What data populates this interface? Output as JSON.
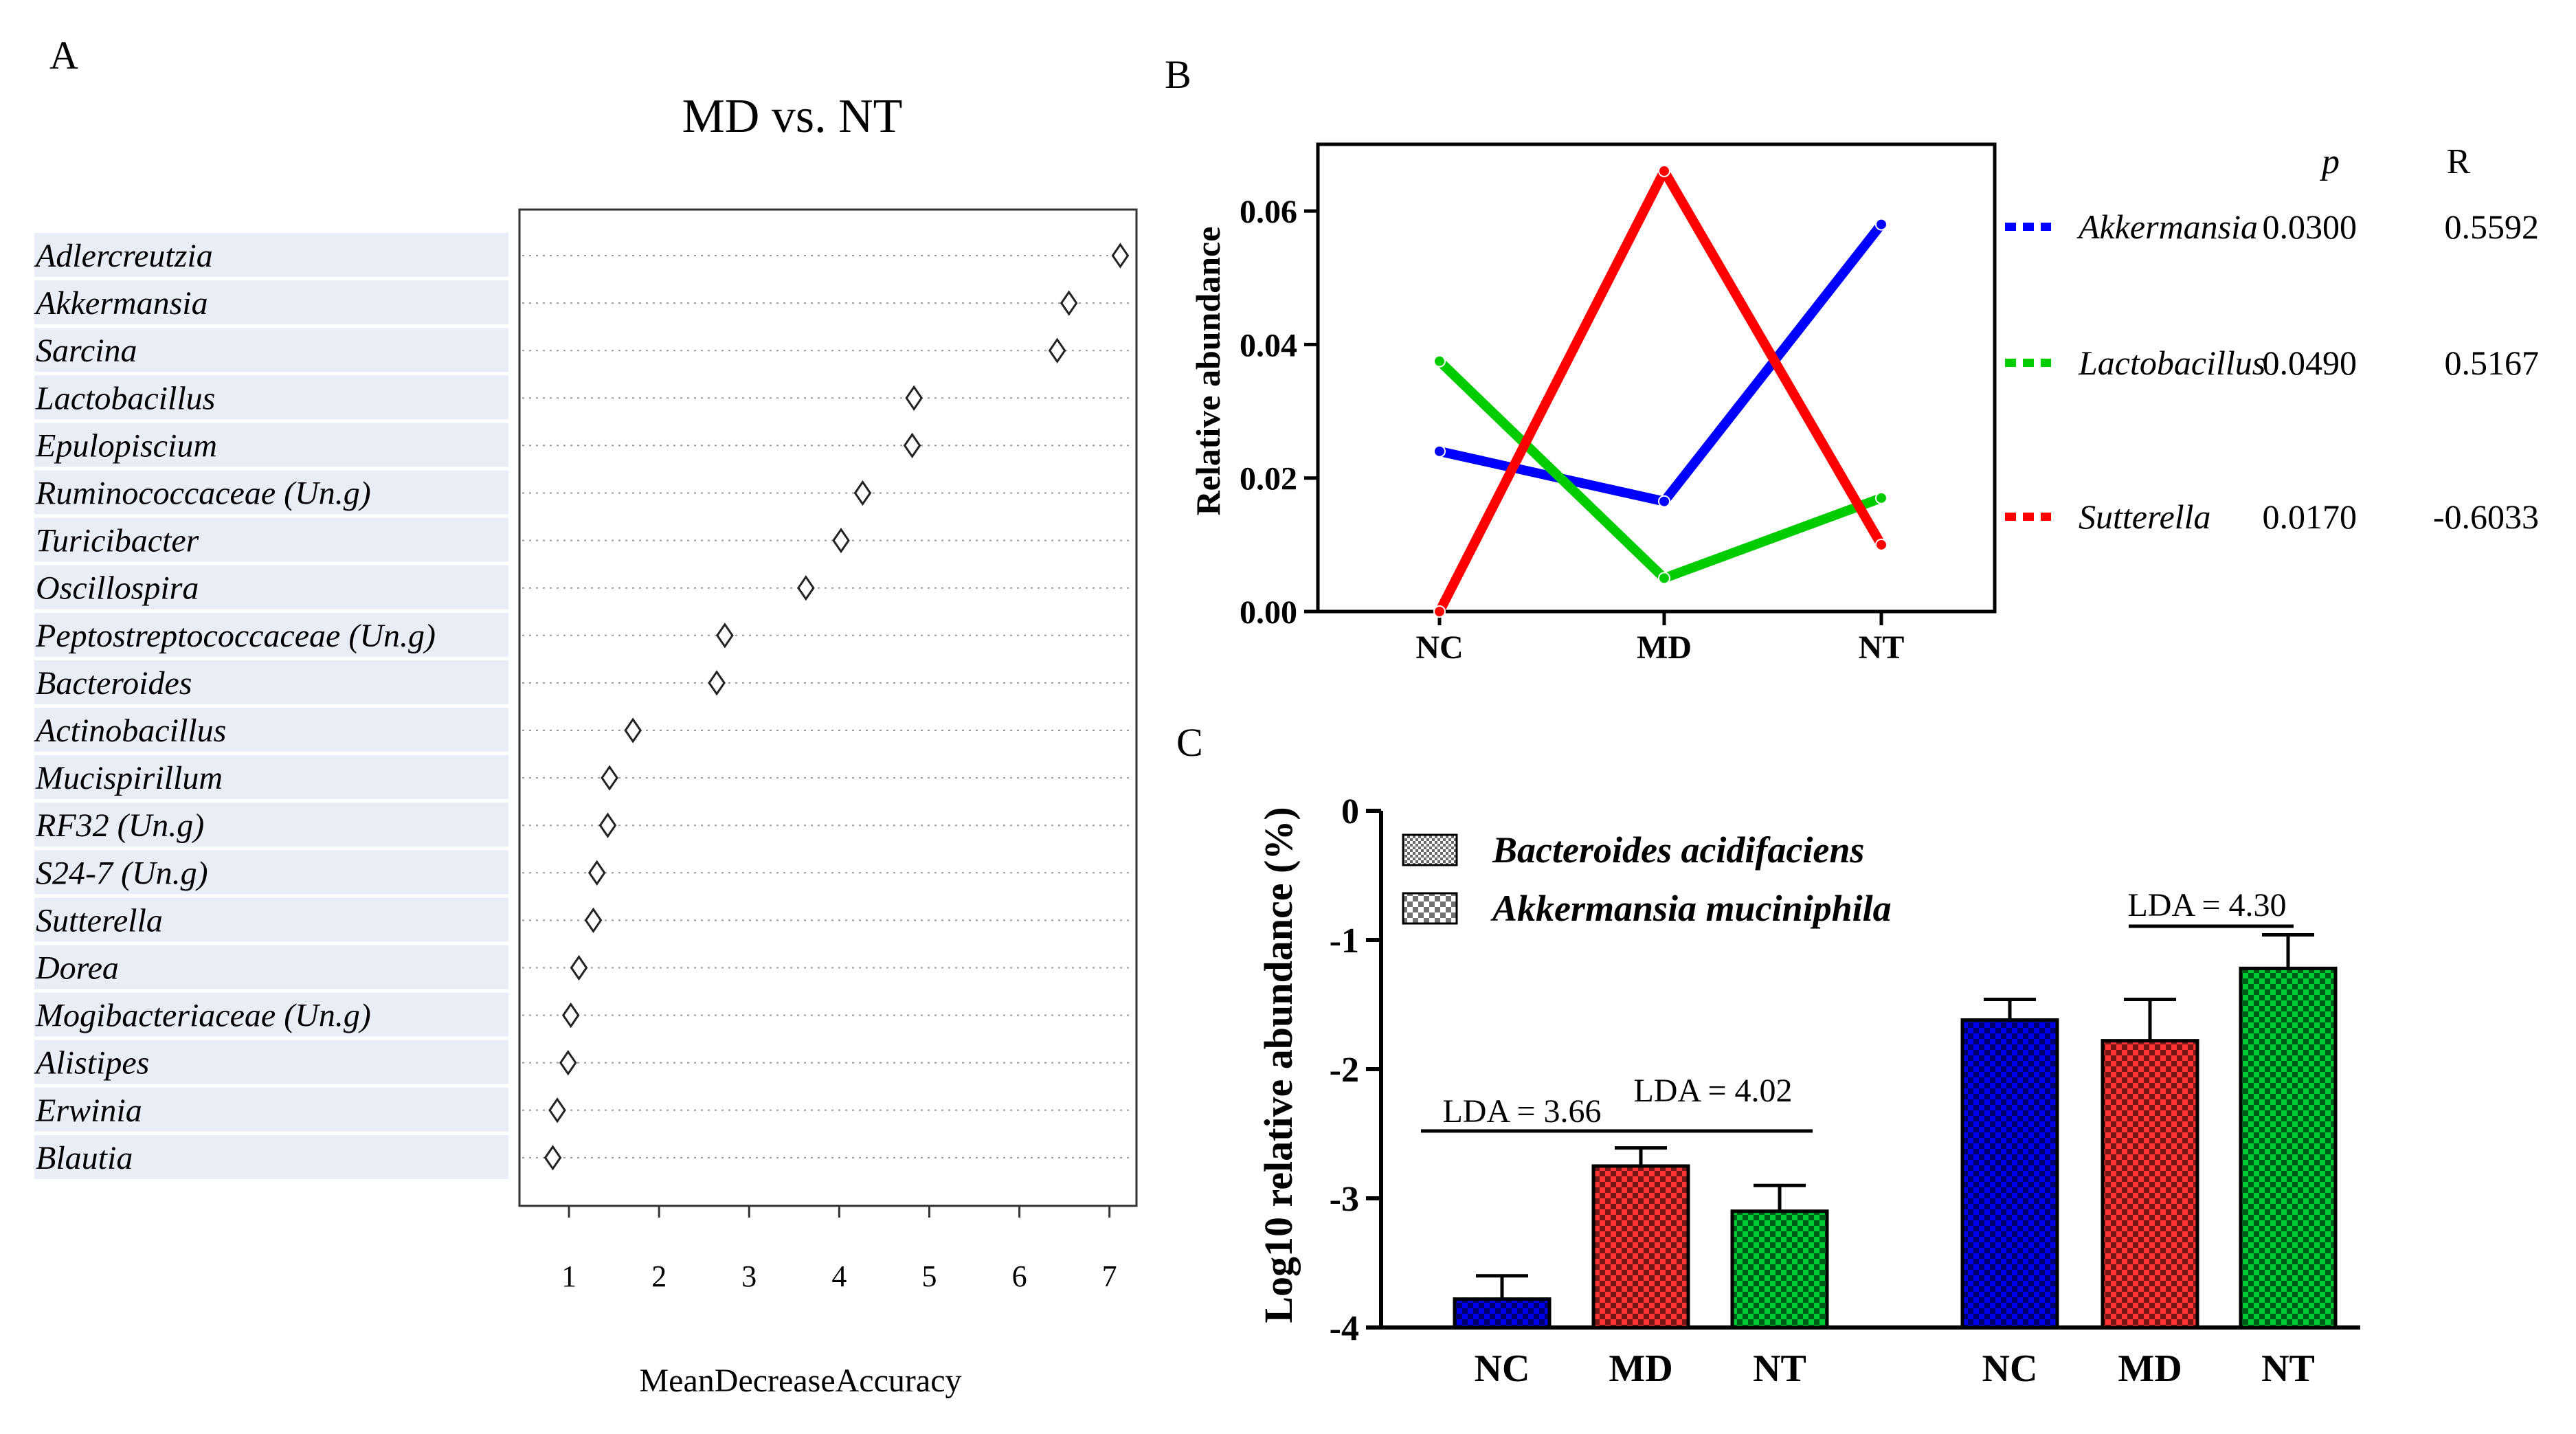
{
  "panels": {
    "a": "A",
    "b": "B",
    "c": "C"
  },
  "chart_data": [
    {
      "type": "scatter",
      "title": "MD vs. NT",
      "xlabel": "MeanDecreaseAccuracy",
      "ylabel": "",
      "xlim": [
        0.45,
        7.3
      ],
      "xticks": [
        "1",
        "2",
        "3",
        "4",
        "5",
        "6",
        "7"
      ],
      "marker": "diamond",
      "categories": [
        "Adlercreutzia",
        "Akkermansia",
        "Sarcina",
        "Lactobacillus",
        "Epulopiscium",
        "Ruminococcaceae (Un.g)",
        "Turicibacter",
        "Oscillospira",
        "Peptostreptococcaceae (Un.g)",
        "Bacteroides",
        "Actinobacillus",
        "Mucispirillum",
        "RF32 (Un.g)",
        "S24-7 (Un.g)",
        "Sutterella",
        "Dorea",
        "Mogibacteriaceae (Un.g)",
        "Alistipes",
        "Erwinia",
        "Blautia"
      ],
      "values": [
        7.12,
        6.55,
        6.42,
        4.83,
        4.81,
        4.26,
        4.02,
        3.63,
        2.73,
        2.64,
        1.71,
        1.45,
        1.43,
        1.31,
        1.27,
        1.11,
        1.02,
        0.99,
        0.87,
        0.82
      ]
    },
    {
      "type": "line",
      "title": "",
      "xlabel": "",
      "ylabel": "Relative abundance",
      "categories": [
        "NC",
        "MD",
        "NT"
      ],
      "ylim": [
        0,
        0.07
      ],
      "yticks": [
        "0.00",
        "0.02",
        "0.04",
        "0.06"
      ],
      "legend_header": {
        "p": "p",
        "r": "R"
      },
      "series": [
        {
          "name": "Akkermansia",
          "color": "#0000ff",
          "values": [
            0.024,
            0.0165,
            0.058
          ],
          "p": "0.0300",
          "r": "0.5592"
        },
        {
          "name": "Lactobacillus",
          "color": "#00cc00",
          "values": [
            0.0375,
            0.005,
            0.017
          ],
          "p": "0.0490",
          "r": "0.5167"
        },
        {
          "name": "Sutterella",
          "color": "#ff0000",
          "values": [
            0.0,
            0.066,
            0.01
          ],
          "p": "0.0170",
          "r": "-0.6033"
        }
      ]
    },
    {
      "type": "bar",
      "title": "",
      "xlabel": "",
      "ylabel": "Log10 relative abundance (%)",
      "ylim": [
        -4,
        0
      ],
      "yticks": [
        "0",
        "-1",
        "-2",
        "-3",
        "-4"
      ],
      "groups": [
        {
          "name": "Bacteroides acidifaciens",
          "categories": [
            "NC",
            "MD",
            "NT"
          ],
          "values": [
            -3.78,
            -2.75,
            -3.1
          ],
          "errors": [
            0.18,
            0.14,
            0.2
          ]
        },
        {
          "name": "Akkermansia muciniphila",
          "categories": [
            "NC",
            "MD",
            "NT"
          ],
          "values": [
            -1.62,
            -1.78,
            -1.22
          ],
          "errors": [
            0.16,
            0.32,
            0.26
          ]
        }
      ],
      "group_colors": [
        "#0000ee",
        "#ff3333",
        "#00cc33"
      ],
      "annotations": [
        "LDA = 3.66",
        "LDA = 4.02",
        "LDA = 4.30"
      ]
    }
  ]
}
